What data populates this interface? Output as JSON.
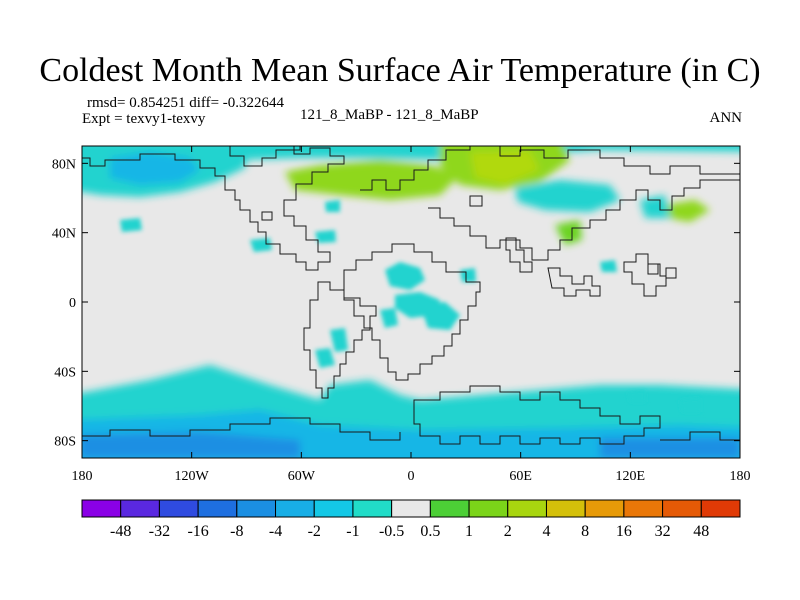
{
  "header": {
    "title": "Coldest Month Mean Surface Air Temperature (in C)",
    "stats": "rmsd= 0.854251 diff= -0.322644",
    "expt": "Expt = texvy1-texvy",
    "center": "121_8_MaBP - 121_8_MaBP",
    "season": "ANN"
  },
  "chart_data": {
    "type": "heatmap",
    "title": "Coldest Month Mean Surface Air Temperature (in C)",
    "projection": "cylindrical-equidistant",
    "x_range": [
      -180,
      180
    ],
    "y_range": [
      -90,
      90
    ],
    "x_ticks": [
      {
        "value": -180,
        "label": "180"
      },
      {
        "value": -120,
        "label": "120W"
      },
      {
        "value": -60,
        "label": "60W"
      },
      {
        "value": 0,
        "label": "0"
      },
      {
        "value": 60,
        "label": "60E"
      },
      {
        "value": 120,
        "label": "120E"
      },
      {
        "value": 180,
        "label": "180"
      }
    ],
    "y_ticks": [
      {
        "value": 80,
        "label": "80N"
      },
      {
        "value": 40,
        "label": "40N"
      },
      {
        "value": 0,
        "label": "0"
      },
      {
        "value": -40,
        "label": "40S"
      },
      {
        "value": -80,
        "label": "80S"
      }
    ],
    "colorbar": {
      "levels": [
        "-48",
        "-32",
        "-16",
        "-8",
        "-4",
        "-2",
        "-1",
        "-0.5",
        "0.5",
        "1",
        "2",
        "4",
        "8",
        "16",
        "32",
        "48"
      ],
      "colors": [
        "#8a00e6",
        "#5a28e0",
        "#2f4be0",
        "#1e6fe0",
        "#1b8fe3",
        "#18aee6",
        "#14c8e6",
        "#21dcc8",
        "#e8e8e8",
        "#4ccf36",
        "#7bd419",
        "#a8d60f",
        "#d4c00a",
        "#e79a08",
        "#ea7708",
        "#e55a06",
        "#e03a06"
      ]
    },
    "regions": [
      {
        "name": "north-pacific-cool",
        "level": "-1 to -0.5",
        "lon": [
          -180,
          -95
        ],
        "lat": [
          55,
          90
        ]
      },
      {
        "name": "arctic-cool",
        "level": "-1 to -0.5",
        "lon": [
          -180,
          180
        ],
        "lat": [
          78,
          90
        ]
      },
      {
        "name": "eurasia-warm",
        "level": "0.5 to 2",
        "lon": [
          -45,
          40
        ],
        "lat": [
          55,
          75
        ]
      },
      {
        "name": "north-atlantic-warm",
        "level": "0.5 to 2",
        "lon": [
          10,
          70
        ],
        "lat": [
          72,
          90
        ]
      },
      {
        "name": "siberia-cool",
        "level": "-1 to -0.5",
        "lon": [
          60,
          120
        ],
        "lat": [
          45,
          65
        ]
      },
      {
        "name": "east-asia-warm",
        "level": "0.5 to 2",
        "lon": [
          140,
          170
        ],
        "lat": [
          40,
          50
        ]
      },
      {
        "name": "central-asia-warm",
        "level": "0.5 to 1",
        "lon": [
          85,
          100
        ],
        "lat": [
          30,
          42
        ]
      },
      {
        "name": "tropical-africa-cool",
        "level": "-0.5 to -1",
        "lon": [
          -20,
          15
        ],
        "lat": [
          -15,
          15
        ]
      },
      {
        "name": "south-atlantic-cool",
        "level": "-0.5 to -1",
        "lon": [
          -50,
          -40
        ],
        "lat": [
          -40,
          -15
        ]
      },
      {
        "name": "southern-ocean-cool",
        "level": "-4 to -0.5",
        "lon": [
          -180,
          180
        ],
        "lat": [
          -90,
          -50
        ]
      }
    ]
  }
}
